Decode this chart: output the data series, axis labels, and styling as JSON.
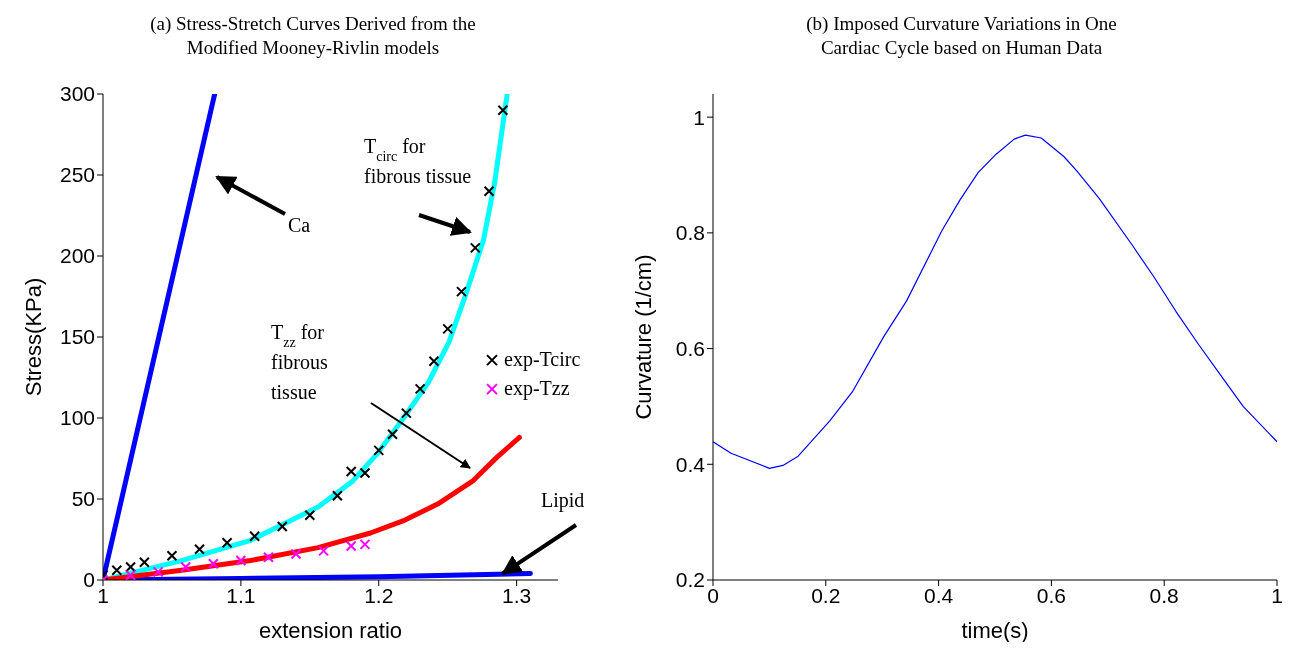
{
  "chart_data": [
    {
      "type": "line",
      "title": "(a) Stress-Stretch Curves Derived from the Modified Mooney-Rivlin models",
      "xlabel": "extension ratio",
      "ylabel": "Stress(KPa)",
      "xlim": [
        1,
        1.33
      ],
      "ylim": [
        0,
        300
      ],
      "xticks": [
        1,
        1.1,
        1.2,
        1.3
      ],
      "yticks": [
        0,
        50,
        100,
        150,
        200,
        250,
        300
      ],
      "grid": false,
      "legend": "right",
      "series": [
        {
          "color": "#0000ff",
          "x": [
            1,
            1.081
          ],
          "values": [
            0,
            300
          ]
        },
        {
          "color": "#0000ff",
          "x": [
            1,
            1.1,
            1.2,
            1.31
          ],
          "values": [
            0,
            1,
            2,
            4
          ]
        },
        {
          "name": "exp-Tcirc",
          "type": "scatter",
          "marker": "cross",
          "color": "#000000",
          "x": [
            1,
            1.01,
            1.02,
            1.03,
            1.05,
            1.07,
            1.09,
            1.11,
            1.13,
            1.15,
            1.17,
            1.18,
            1.19,
            1.2,
            1.21,
            1.22,
            1.23,
            1.24,
            1.25,
            1.26,
            1.27,
            1.28,
            1.29
          ],
          "values": [
            3,
            6,
            8,
            11,
            15,
            19,
            23,
            27,
            33,
            40,
            52,
            67,
            66,
            80,
            90,
            103,
            118,
            135,
            155,
            178,
            205,
            240,
            290
          ]
        },
        {
          "name": "exp-Tzz",
          "type": "scatter",
          "marker": "cross",
          "color": "#ff00ff",
          "x": [
            1,
            1.02,
            1.04,
            1.06,
            1.08,
            1.1,
            1.12,
            1.14,
            1.16,
            1.18,
            1.19
          ],
          "values": [
            0,
            3,
            5,
            8,
            10,
            12,
            14,
            16,
            18,
            21,
            22
          ]
        },
        {
          "color": "#00ffff",
          "x": [
            1,
            1.057,
            1.107,
            1.156,
            1.181,
            1.199,
            1.218,
            1.236,
            1.251,
            1.263,
            1.276,
            1.284,
            1.293
          ],
          "values": [
            0,
            12,
            24.5,
            45,
            61,
            78,
            100,
            122,
            147,
            176,
            210,
            245,
            299
          ]
        },
        {
          "color": "#ff0000",
          "x": [
            1,
            1.057,
            1.107,
            1.156,
            1.194,
            1.219,
            1.243,
            1.268,
            1.286,
            1.302
          ],
          "values": [
            0,
            6,
            12,
            20,
            29,
            37,
            47,
            61,
            76,
            88
          ]
        }
      ],
      "annotations": [
        "Ca",
        "T$_{circ}$ for fibrous tissue",
        "T$_{zz}$ for fibrous tissue",
        {
          "text": "Lipid",
          "x": 1.29,
          "y": 4
        }
      ]
    },
    {
      "type": "line",
      "title": "(b) Imposed Curvature Variations in One Cardiac Cycle based on Human Data",
      "xlabel": "time(s)",
      "ylabel": "Curvature (1/cm)",
      "xlim": [
        0,
        1
      ],
      "ylim": [
        0.2,
        1.04
      ],
      "xticks": [
        0,
        0.2,
        0.4,
        0.6,
        0.8,
        1
      ],
      "yticks": [
        0.2,
        0.4,
        0.6,
        0.8,
        1
      ],
      "grid": false,
      "series": [
        {
          "color": "#0000ff",
          "x": [
            0,
            0.032,
            0.1,
            0.124,
            0.151,
            0.207,
            0.247,
            0.303,
            0.343,
            0.406,
            0.438,
            0.47,
            0.502,
            0.534,
            0.554,
            0.582,
            0.622,
            0.645,
            0.685,
            0.741,
            0.781,
            0.821,
            0.861,
            0.9,
            0.94,
            1
          ],
          "values": [
            0.439,
            0.419,
            0.393,
            0.398,
            0.414,
            0.475,
            0.525,
            0.621,
            0.682,
            0.804,
            0.857,
            0.904,
            0.936,
            0.962,
            0.969,
            0.964,
            0.932,
            0.907,
            0.859,
            0.782,
            0.725,
            0.664,
            0.607,
            0.554,
            0.5,
            0.439
          ]
        }
      ]
    }
  ]
}
